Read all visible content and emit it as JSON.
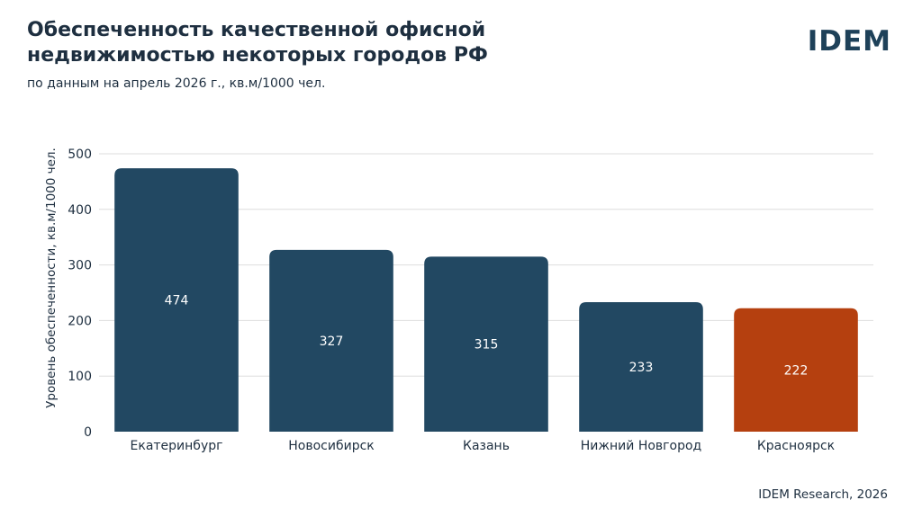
{
  "header": {
    "title": "Обеспеченность качественной офисной недвижимостью некоторых городов РФ",
    "subtitle": "по данным на апрель 2026 г., кв.м/1000 чел.",
    "logo": "IDEM"
  },
  "footer": {
    "source": "IDEM Research, 2026"
  },
  "chart_data": {
    "type": "bar",
    "title": "Обеспеченность качественной офисной недвижимостью некоторых городов РФ",
    "subtitle": "по данным на апрель 2026 г., кв.м/1000 чел.",
    "xlabel": "",
    "ylabel": "Уровень обеспеченности, кв.м/1000 чел.",
    "categories": [
      "Екатеринбург",
      "Новосибирск",
      "Казань",
      "Нижний Новгород",
      "Красноярск"
    ],
    "values": [
      474,
      327,
      315,
      233,
      222
    ],
    "ylim": [
      0,
      500
    ],
    "yticks": [
      0,
      100,
      200,
      300,
      400,
      500
    ],
    "grid": true,
    "data_labels": true,
    "colors": {
      "default": "#224862",
      "highlight": "#b5400f",
      "highlight_category": "Красноярск",
      "label_text": "#ffffff",
      "grid": "#dddddd"
    }
  }
}
